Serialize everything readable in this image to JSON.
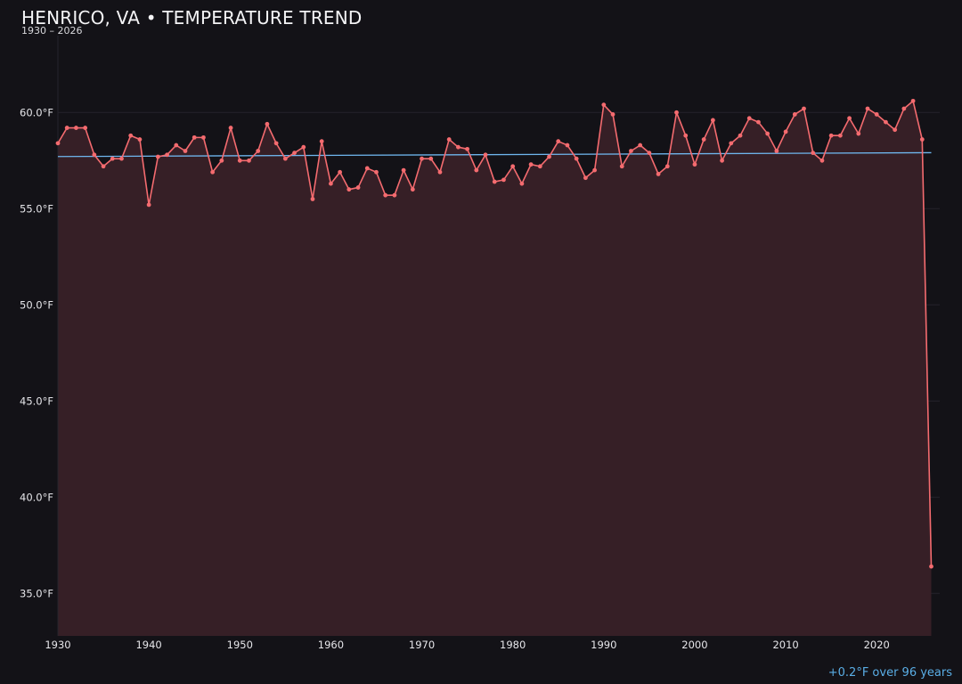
{
  "header": {
    "title": "HENRICO, VA • TEMPERATURE TREND",
    "subtitle": "1930 – 2026"
  },
  "footnote": "+0.2°F over 96 years",
  "colors": {
    "background": "#131217",
    "line": "#f46b6f",
    "fill": "#361f26",
    "trend": "#6fb6ee",
    "grid": "#25232b"
  },
  "chart_data": {
    "type": "line",
    "title": "HENRICO, VA • TEMPERATURE TREND",
    "subtitle": "1930 – 2026",
    "xlabel": "",
    "ylabel": "",
    "xlim": [
      1930,
      2027
    ],
    "ylim": [
      32.7,
      62.5
    ],
    "y_unit": "°F",
    "x_ticks": [
      1930,
      1940,
      1950,
      1960,
      1970,
      1980,
      1990,
      2000,
      2010,
      2020
    ],
    "x_tick_labels": [
      "1930",
      "1940",
      "1950",
      "1960",
      "1970",
      "1980",
      "1990",
      "2000",
      "2010",
      "2020"
    ],
    "y_ticks": [
      35,
      40,
      45,
      50,
      55,
      60
    ],
    "y_tick_labels": [
      "35.0°F",
      "40.0°F",
      "45.0°F",
      "50.0°F",
      "55.0°F",
      "60.0°F"
    ],
    "grid": true,
    "area_fill": true,
    "series": [
      {
        "x": [
          1930,
          1931,
          1932,
          1933,
          1934,
          1935,
          1936,
          1937,
          1938,
          1939,
          1940,
          1941,
          1942,
          1943,
          1944,
          1945,
          1946,
          1947,
          1948,
          1949,
          1950,
          1951,
          1952,
          1953,
          1954,
          1955,
          1956,
          1957,
          1958,
          1959,
          1960,
          1961,
          1962,
          1963,
          1964,
          1965,
          1966,
          1967,
          1968,
          1969,
          1970,
          1971,
          1972,
          1973,
          1974,
          1975,
          1976,
          1977,
          1978,
          1979,
          1980,
          1981,
          1982,
          1983,
          1984,
          1985,
          1986,
          1987,
          1988,
          1989,
          1990,
          1991,
          1992,
          1993,
          1994,
          1995,
          1996,
          1997,
          1998,
          1999,
          2000,
          2001,
          2002,
          2003,
          2004,
          2005,
          2006,
          2007,
          2008,
          2009,
          2010,
          2011,
          2012,
          2013,
          2014,
          2015,
          2016,
          2017,
          2018,
          2019,
          2020,
          2021,
          2022,
          2023,
          2024,
          2025,
          2026
        ],
        "values": [
          58.4,
          59.2,
          59.2,
          59.2,
          57.8,
          57.2,
          57.6,
          57.6,
          58.8,
          58.6,
          55.2,
          57.7,
          57.8,
          58.3,
          58.0,
          58.7,
          58.7,
          56.9,
          57.5,
          59.2,
          57.5,
          57.5,
          58.0,
          59.4,
          58.4,
          57.6,
          57.9,
          58.2,
          55.5,
          58.5,
          56.3,
          56.9,
          56.0,
          56.1,
          57.1,
          56.9,
          55.7,
          55.7,
          57.0,
          56.0,
          57.6,
          57.6,
          56.9,
          58.6,
          58.2,
          58.1,
          57.0,
          57.8,
          56.4,
          56.5,
          57.2,
          56.3,
          57.3,
          57.2,
          57.7,
          58.5,
          58.3,
          57.6,
          56.6,
          57.0,
          60.4,
          59.9,
          57.2,
          58.0,
          58.3,
          57.9,
          56.8,
          57.2,
          60.0,
          58.8,
          57.3,
          58.6,
          59.6,
          57.5,
          58.4,
          58.8,
          59.7,
          59.5,
          58.9,
          58.0,
          59.0,
          59.9,
          60.2,
          57.9,
          57.5,
          58.8,
          58.8,
          59.7,
          58.9,
          60.2,
          59.9,
          59.5,
          59.1,
          60.2,
          60.6,
          58.6,
          36.4
        ]
      }
    ],
    "trend_line": {
      "x": [
        1930,
        2026
      ],
      "values": [
        57.71,
        57.91
      ]
    },
    "annotation": "+0.2°F over 96 years"
  }
}
